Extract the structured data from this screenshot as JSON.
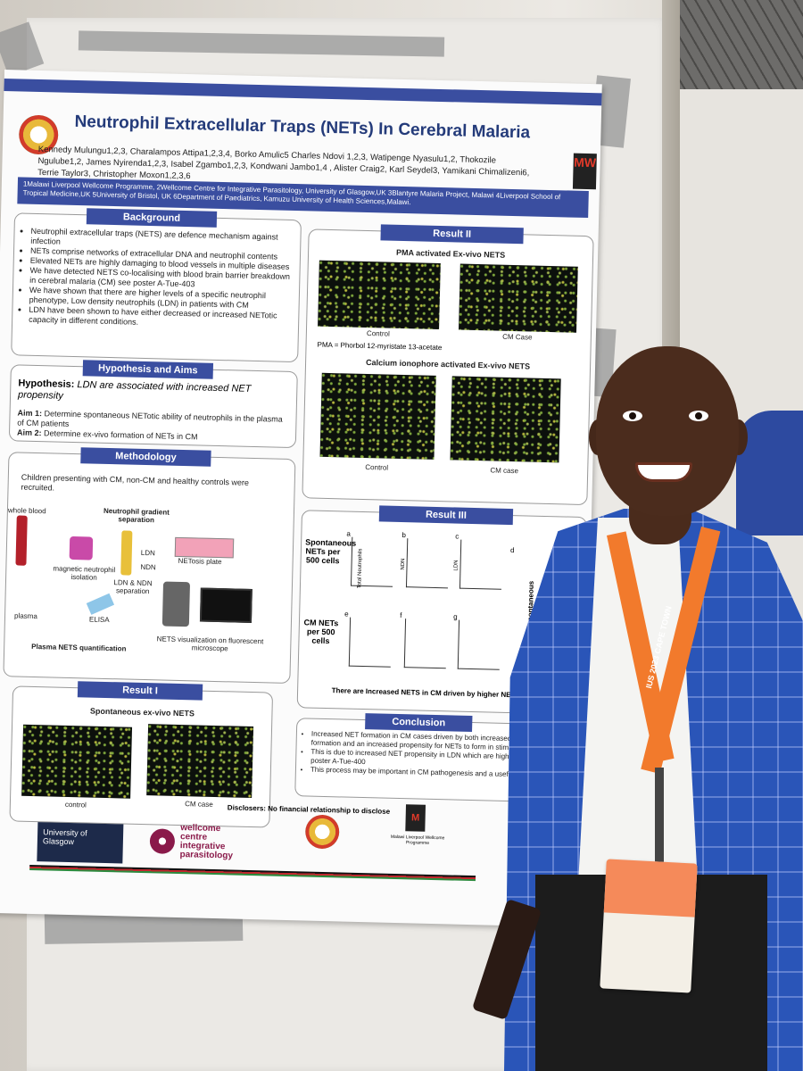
{
  "poster": {
    "title": "Neutrophil Extracellular Traps (NETs) In Cerebral Malaria",
    "authors": "Kennedy Mulungu1,2,3, Charalampos Attipa1,2,3,4, Borko Amulic5 Charles Ndovi 1,2,3, Watipenge Nyasulu1,2, Thokozile Ngulube1,2, James Nyirenda1,2,3, Isabel Zgambo1,2,3, Kondwani Jambo1,4 , Alister Craig2, Karl Seydel3, Yamikani Chimalizeni6, Terrie Taylor3, Christopher Moxon1,2,3,6",
    "affiliations": "1Malawi Liverpool Wellcome Programme, 2Wellcome Centre for Integrative Parasitology, University of Glasgow,UK 3Blantyre Malaria Project, Malawi 4Liverpool School of Tropical Medicine,UK 5University of Bristol, UK 6Department of Paediatrics, Kamuzu University of Health Sciences,Malawi.",
    "background": {
      "header": "Background",
      "bullets": [
        "Neutrophil extracellular traps (NETS) are defence mechanism against infection",
        "NETs comprise networks of extracellular DNA and neutrophil contents",
        "Elevated NETs are highly damaging to blood vessels in multiple diseases",
        "We have detected NETS co-localising with blood brain barrier breakdown in cerebral malaria (CM) see poster A-Tue-403",
        "We have shown that there are higher levels of a specific neutrophil phenotype, Low density neutrophils (LDN) in patients with CM",
        "LDN have been shown to have either decreased or increased NETotic capacity in different conditions."
      ]
    },
    "hypothesis": {
      "header": "Hypothesis and Aims",
      "hypothesis_label": "Hypothesis:",
      "hypothesis_text": "LDN are associated with increased NET propensity",
      "aim1_label": "Aim 1:",
      "aim1_text": "Determine spontaneous NETotic ability of neutrophils in the plasma of CM patients",
      "aim2_label": "Aim 2:",
      "aim2_text": "Determine ex-vivo formation of NETs in CM"
    },
    "methodology": {
      "header": "Methodology",
      "intro": "Children presenting with CM, non-CM and healthy controls were recruited.",
      "labels": {
        "whole_blood": "whole blood",
        "gradient": "Neutrophil gradient separation",
        "magnetic": "magnetic neutrophil isolation",
        "ldn": "LDN",
        "ndn": "NDN",
        "ldn_ndn": "LDN & NDN separation",
        "netosis_plate": "NETosis plate",
        "plasma": "plasma",
        "elisa": "ELISA",
        "plasma_nets": "Plasma NETS quantification",
        "nets_vis": "NETS visualization on fluorescent microscope"
      }
    },
    "result1": {
      "header": "Result I",
      "subtitle": "Spontaneous ex-vivo NETS",
      "cap_left": "control",
      "cap_right": "CM case"
    },
    "result2": {
      "header": "Result II",
      "pma_title": "PMA activated Ex-vivo NETS",
      "pma_cap_left": "Control",
      "pma_cap_right": "CM Case",
      "pma_note": "PMA = Phorbol 12-myristate 13-acetate",
      "ca_title": "Calcium ionophore activated Ex-vivo NETS",
      "ca_cap_left": "Control",
      "ca_cap_right": "CM case"
    },
    "result3": {
      "header": "Result III",
      "row1_label": "Spontaneous NETs per 500 cells",
      "row2_label": "CM NETs per 500 cells",
      "panels": [
        "a",
        "b",
        "c",
        "d",
        "e",
        "f",
        "g"
      ],
      "axis_total": "Total Neutrophils",
      "axis_ndn": "NDN",
      "axis_ldn": "LDN",
      "side_label": "CM spontaneous",
      "caption": "There are Increased NETS in CM driven by higher NET formation"
    },
    "conclusion": {
      "header": "Conclusion",
      "bullets": [
        "Increased NET formation in CM cases driven by both increased NET formation and an increased propensity for NETs to form in stimulant",
        "This is due to increased NET propensity in LDN which are higher see poster A-Tue-400",
        "This process may be important in CM pathogenesis and a useful therapies"
      ]
    },
    "disclosures": "Disclosers: No financial relationship to disclose",
    "logos": {
      "glasgow": "University of Glasgow",
      "wellcome_1": "wellcome",
      "wellcome_2": "centre",
      "wellcome_3": "integrative",
      "wellcome_4": "parasitology",
      "mw": "MW",
      "mw_caption": "Malawi Liverpool Wellcome Programme"
    }
  },
  "lanyard_text": "IUS 2023 CAPE TOWN"
}
